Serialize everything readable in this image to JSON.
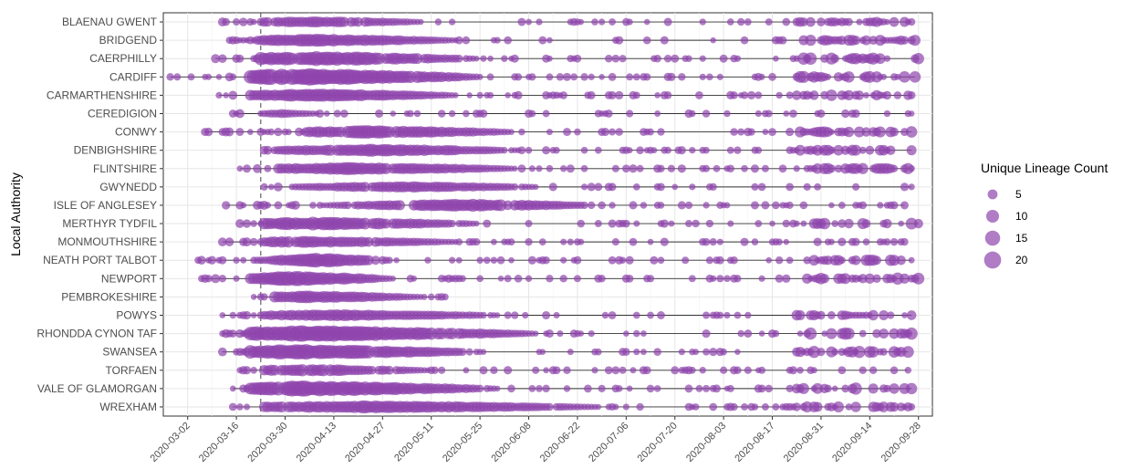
{
  "chart_data": {
    "type": "scatter",
    "subtype": "bubble-timeline",
    "ylabel": "Local Authority",
    "xlabel": "",
    "x_ticks": [
      "2020-03-02",
      "2020-03-16",
      "2020-03-30",
      "2020-04-13",
      "2020-04-27",
      "2020-05-11",
      "2020-05-25",
      "2020-06-08",
      "2020-06-22",
      "2020-07-06",
      "2020-07-20",
      "2020-08-03",
      "2020-08-17",
      "2020-08-31",
      "2020-09-14",
      "2020-09-28"
    ],
    "xlim": [
      "2020-02-24",
      "2020-10-02"
    ],
    "reference_line_date": "2020-03-23",
    "grid": true,
    "point_color": "#8e44ad",
    "point_opacity": 0.7,
    "line_color": "#333333",
    "legend": {
      "title": "Unique Lineage Count",
      "position": "right",
      "entries": [
        5,
        10,
        15,
        20
      ]
    },
    "categories": [
      "BLAENAU GWENT",
      "BRIDGEND",
      "CAERPHILLY",
      "CARDIFF",
      "CARMARTHENSHIRE",
      "CEREDIGION",
      "CONWY",
      "DENBIGHSHIRE",
      "FLINTSHIRE",
      "GWYNEDD",
      "ISLE OF ANGLESEY",
      "MERTHYR TYDFIL",
      "MONMOUTHSHIRE",
      "NEATH PORT TALBOT",
      "NEWPORT",
      "PEMBROKESHIRE",
      "POWYS",
      "RHONDDA CYNON TAF",
      "SWANSEA",
      "TORFAEN",
      "VALE OF GLAMORGAN",
      "WREXHAM"
    ],
    "series": [
      {
        "category": "BLAENAU GWENT",
        "first": "2020-03-12",
        "last": "2020-09-26",
        "dense_start": "2020-03-24",
        "dense_end": "2020-05-08",
        "peak": "2020-04-08",
        "max_count": 8,
        "late_cluster": true
      },
      {
        "category": "BRIDGEND",
        "first": "2020-03-14",
        "last": "2020-09-27",
        "dense_start": "2020-03-23",
        "dense_end": "2020-05-18",
        "peak": "2020-04-08",
        "max_count": 11,
        "late_cluster": true
      },
      {
        "category": "CAERPHILLY",
        "first": "2020-03-10",
        "last": "2020-09-28",
        "dense_start": "2020-03-23",
        "dense_end": "2020-05-24",
        "peak": "2020-04-08",
        "max_count": 16,
        "late_cluster": true
      },
      {
        "category": "CARDIFF",
        "first": "2020-02-26",
        "last": "2020-09-27",
        "dense_start": "2020-03-20",
        "dense_end": "2020-05-26",
        "peak": "2020-04-05",
        "max_count": 22,
        "late_cluster": true
      },
      {
        "category": "CARMARTHENSHIRE",
        "first": "2020-03-11",
        "last": "2020-09-26",
        "dense_start": "2020-03-20",
        "dense_end": "2020-05-18",
        "peak": "2020-04-08",
        "max_count": 12,
        "late_cluster": true
      },
      {
        "category": "CEREDIGION",
        "first": "2020-03-15",
        "last": "2020-09-26",
        "dense_start": "2020-03-24",
        "dense_end": "2020-04-08",
        "peak": "2020-03-29",
        "max_count": 4,
        "late_cluster": false
      },
      {
        "category": "CONWY",
        "first": "2020-03-07",
        "last": "2020-09-26",
        "dense_start": "2020-04-05",
        "dense_end": "2020-06-04",
        "peak": "2020-04-25",
        "max_count": 12,
        "late_cluster": true
      },
      {
        "category": "DENBIGHSHIRE",
        "first": "2020-03-24",
        "last": "2020-09-26",
        "dense_start": "2020-03-30",
        "dense_end": "2020-06-04",
        "peak": "2020-04-25",
        "max_count": 11,
        "late_cluster": true
      },
      {
        "category": "FLINTSHIRE",
        "first": "2020-03-17",
        "last": "2020-09-26",
        "dense_start": "2020-03-28",
        "dense_end": "2020-06-04",
        "peak": "2020-04-20",
        "max_count": 11,
        "late_cluster": true
      },
      {
        "category": "GWYNEDD",
        "first": "2020-03-24",
        "last": "2020-09-26",
        "dense_start": "2020-04-01",
        "dense_end": "2020-06-10",
        "peak": "2020-05-04",
        "max_count": 8,
        "late_cluster": false
      },
      {
        "category": "ISLE OF ANGLESEY",
        "first": "2020-03-13",
        "last": "2020-09-24",
        "dense_start": "2020-04-10",
        "dense_end": "2020-06-24",
        "peak": "2020-05-20",
        "max_count": 11,
        "late_cluster": false
      },
      {
        "category": "MERTHYR TYDFIL",
        "first": "2020-03-17",
        "last": "2020-09-28",
        "dense_start": "2020-03-24",
        "dense_end": "2020-05-24",
        "peak": "2020-04-10",
        "max_count": 13,
        "late_cluster": true
      },
      {
        "category": "MONMOUTHSHIRE",
        "first": "2020-03-12",
        "last": "2020-09-24",
        "dense_start": "2020-03-24",
        "dense_end": "2020-05-18",
        "peak": "2020-04-06",
        "max_count": 9,
        "late_cluster": false
      },
      {
        "category": "NEATH PORT TALBOT",
        "first": "2020-03-05",
        "last": "2020-09-26",
        "dense_start": "2020-03-26",
        "dense_end": "2020-04-30",
        "peak": "2020-04-10",
        "max_count": 16,
        "late_cluster": true
      },
      {
        "category": "NEWPORT",
        "first": "2020-03-06",
        "last": "2020-09-28",
        "dense_start": "2020-03-20",
        "dense_end": "2020-04-30",
        "peak": "2020-04-01",
        "max_count": 17,
        "late_cluster": true
      },
      {
        "category": "PEMBROKESHIRE",
        "first": "2020-03-21",
        "last": "2020-05-15",
        "dense_start": "2020-03-27",
        "dense_end": "2020-05-08",
        "peak": "2020-04-06",
        "max_count": 10,
        "late_cluster": false
      },
      {
        "category": "POWYS",
        "first": "2020-03-12",
        "last": "2020-09-26",
        "dense_start": "2020-03-24",
        "dense_end": "2020-05-30",
        "peak": "2020-04-15",
        "max_count": 9,
        "late_cluster": true
      },
      {
        "category": "RHONDDA CYNON TAF",
        "first": "2020-03-12",
        "last": "2020-09-26",
        "dense_start": "2020-03-20",
        "dense_end": "2020-06-10",
        "peak": "2020-04-06",
        "max_count": 20,
        "late_cluster": true
      },
      {
        "category": "SWANSEA",
        "first": "2020-03-12",
        "last": "2020-09-25",
        "dense_start": "2020-03-20",
        "dense_end": "2020-05-26",
        "peak": "2020-04-05",
        "max_count": 17,
        "late_cluster": true
      },
      {
        "category": "TORFAEN",
        "first": "2020-03-17",
        "last": "2020-09-25",
        "dense_start": "2020-03-24",
        "dense_end": "2020-05-10",
        "peak": "2020-04-06",
        "max_count": 10,
        "late_cluster": false
      },
      {
        "category": "VALE OF GLAMORGAN",
        "first": "2020-03-15",
        "last": "2020-09-26",
        "dense_start": "2020-03-20",
        "dense_end": "2020-05-30",
        "peak": "2020-04-06",
        "max_count": 19,
        "late_cluster": true
      },
      {
        "category": "WREXHAM",
        "first": "2020-03-15",
        "last": "2020-09-26",
        "dense_start": "2020-03-24",
        "dense_end": "2020-06-28",
        "peak": "2020-04-25",
        "max_count": 11,
        "late_cluster": true
      }
    ]
  }
}
